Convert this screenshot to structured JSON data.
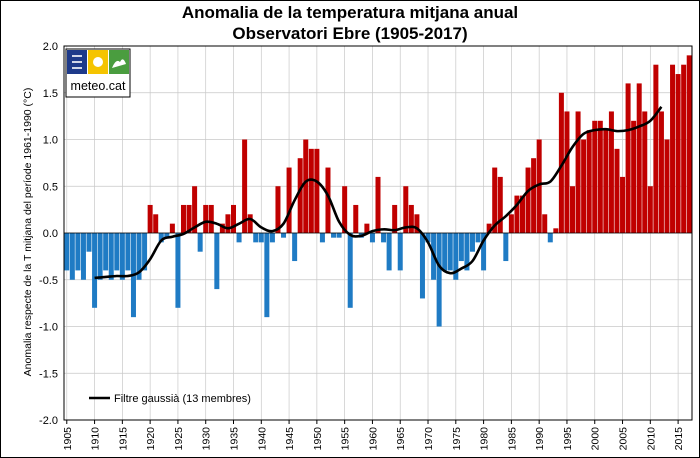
{
  "chart_data": {
    "type": "bar",
    "title": "Anomalia de la temperatura mitjana anual",
    "subtitle": "Observatori Ebre (1905-2017)",
    "ylabel": "Anomalia respecte de la T mitjana del període 1961-1990 (°C)",
    "xlabel": "",
    "ylim": [
      -2.0,
      2.0
    ],
    "yticks": [
      "-2.0",
      "-1.5",
      "-1.0",
      "-0.5",
      "0.0",
      "0.5",
      "1.0",
      "1.5",
      "2.0"
    ],
    "xticks": [
      "1905",
      "1910",
      "1915",
      "1920",
      "1925",
      "1930",
      "1935",
      "1940",
      "1945",
      "1950",
      "1955",
      "1960",
      "1965",
      "1970",
      "1975",
      "1980",
      "1985",
      "1990",
      "1995",
      "2000",
      "2005",
      "2010",
      "2015"
    ],
    "grid": true,
    "positive_color": "#c00000",
    "negative_color": "#1f7bc4",
    "logo_text": "meteo.cat",
    "years": [
      1905,
      1906,
      1907,
      1908,
      1909,
      1910,
      1911,
      1912,
      1913,
      1914,
      1915,
      1916,
      1917,
      1918,
      1919,
      1920,
      1921,
      1922,
      1923,
      1924,
      1925,
      1926,
      1927,
      1928,
      1929,
      1930,
      1931,
      1932,
      1933,
      1934,
      1935,
      1936,
      1937,
      1938,
      1939,
      1940,
      1941,
      1942,
      1943,
      1944,
      1945,
      1946,
      1947,
      1948,
      1949,
      1950,
      1951,
      1952,
      1953,
      1954,
      1955,
      1956,
      1957,
      1958,
      1959,
      1960,
      1961,
      1962,
      1963,
      1964,
      1965,
      1966,
      1967,
      1968,
      1969,
      1970,
      1971,
      1972,
      1973,
      1974,
      1975,
      1976,
      1977,
      1978,
      1979,
      1980,
      1981,
      1982,
      1983,
      1984,
      1985,
      1986,
      1987,
      1988,
      1989,
      1990,
      1991,
      1992,
      1993,
      1994,
      1995,
      1996,
      1997,
      1998,
      1999,
      2000,
      2001,
      2002,
      2003,
      2004,
      2005,
      2006,
      2007,
      2008,
      2009,
      2010,
      2011,
      2012,
      2013,
      2014,
      2015,
      2016,
      2017
    ],
    "values": [
      -0.4,
      -0.5,
      -0.4,
      -0.5,
      -0.2,
      -0.8,
      -0.5,
      -0.4,
      -0.5,
      -0.4,
      -0.5,
      -0.4,
      -0.9,
      -0.5,
      -0.4,
      0.3,
      0.2,
      -0.1,
      -0.05,
      0.1,
      -0.8,
      0.3,
      0.3,
      0.5,
      -0.2,
      0.3,
      0.3,
      -0.6,
      0.1,
      0.2,
      0.3,
      -0.1,
      1.0,
      0.2,
      -0.1,
      -0.1,
      -0.9,
      -0.1,
      0.5,
      -0.05,
      0.7,
      -0.3,
      0.8,
      1.0,
      0.9,
      0.9,
      -0.1,
      0.7,
      -0.05,
      -0.05,
      0.5,
      -0.8,
      0.3,
      -0.05,
      0.1,
      -0.1,
      0.6,
      -0.1,
      -0.4,
      0.3,
      -0.4,
      0.5,
      0.3,
      0.2,
      -0.7,
      -0.1,
      -0.5,
      -1.0,
      -0.4,
      -0.4,
      -0.5,
      -0.3,
      -0.4,
      -0.2,
      -0.1,
      -0.4,
      0.1,
      0.7,
      0.6,
      -0.3,
      0.2,
      0.4,
      0.4,
      0.7,
      0.8,
      1.0,
      0.2,
      -0.1,
      0.05,
      1.5,
      1.3,
      0.5,
      1.3,
      1.0,
      1.1,
      1.2,
      1.2,
      1.1,
      1.3,
      0.9,
      0.6,
      1.6,
      1.2,
      1.6,
      1.3,
      0.5,
      1.8,
      1.3,
      1.0,
      1.8,
      1.7,
      1.8,
      1.9
    ],
    "filter": {
      "label": "Filtre gaussià (13 membres)",
      "color": "#000000",
      "years": [
        1910,
        1912,
        1914,
        1916,
        1918,
        1920,
        1922,
        1924,
        1926,
        1928,
        1930,
        1932,
        1934,
        1936,
        1938,
        1940,
        1942,
        1944,
        1946,
        1948,
        1950,
        1952,
        1954,
        1956,
        1958,
        1960,
        1962,
        1964,
        1966,
        1968,
        1970,
        1972,
        1974,
        1976,
        1978,
        1980,
        1982,
        1984,
        1986,
        1988,
        1990,
        1992,
        1994,
        1996,
        1998,
        2000,
        2002,
        2004,
        2006,
        2008,
        2010,
        2012
      ],
      "values": [
        -0.48,
        -0.47,
        -0.46,
        -0.46,
        -0.42,
        -0.28,
        -0.08,
        -0.04,
        -0.01,
        0.06,
        0.12,
        0.1,
        0.05,
        0.1,
        0.15,
        0.06,
        0.02,
        0.1,
        0.35,
        0.55,
        0.55,
        0.4,
        0.12,
        -0.02,
        -0.03,
        0.02,
        0.04,
        0.03,
        0.06,
        0.05,
        -0.1,
        -0.35,
        -0.43,
        -0.38,
        -0.3,
        -0.08,
        0.08,
        0.18,
        0.3,
        0.45,
        0.52,
        0.55,
        0.72,
        0.92,
        1.06,
        1.1,
        1.11,
        1.09,
        1.1,
        1.14,
        1.2,
        1.35
      ]
    }
  }
}
